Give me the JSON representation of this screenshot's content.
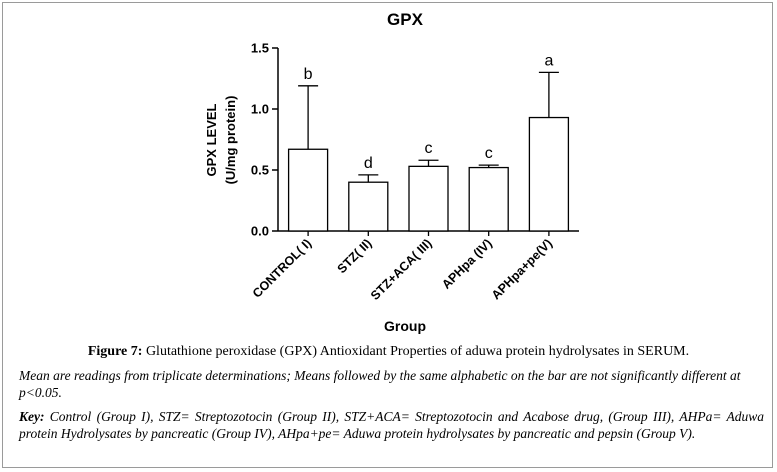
{
  "chart_data": {
    "type": "bar",
    "title": "GPX",
    "xlabel": "Group",
    "ylabel_line1": "GPX LEVEL",
    "ylabel_line2": "(U/mg protein)",
    "ylim": [
      0,
      1.5
    ],
    "yticks": [
      "0.0",
      "0.5",
      "1.0",
      "1.5"
    ],
    "ytick_values": [
      0,
      0.5,
      1.0,
      1.5
    ],
    "categories": [
      "CONTROL( I)",
      "STZ( II)",
      "STZ+ACA( III)",
      "APHpa (IV)",
      "APHpa+pe(V)"
    ],
    "values": [
      0.67,
      0.4,
      0.53,
      0.52,
      0.93
    ],
    "error_upper": [
      0.52,
      0.06,
      0.05,
      0.02,
      0.37
    ],
    "significance_letters": [
      "b",
      "d",
      "c",
      "c",
      "a"
    ],
    "bar_fill": "#ffffff",
    "bar_stroke": "#000000",
    "grid": false
  },
  "caption": {
    "label": "Figure 7:",
    "text": " Glutathione peroxidase (GPX) Antioxidant Properties of aduwa protein hydrolysates in SERUM."
  },
  "note": "Mean are readings from triplicate determinations; Means followed by the same alphabetic on the bar are not significantly different at p<0.05.",
  "key": {
    "label": "Key:",
    "text": " Control (Group I), STZ= Streptozotocin (Group II), STZ+ACA= Streptozotocin and Acabose drug, (Group III), AHPa= Aduwa protein Hydrolysates by pancreatic (Group IV), AHpa+pe= Aduwa protein hydrolysates by pancreatic and pepsin (Group V)."
  }
}
